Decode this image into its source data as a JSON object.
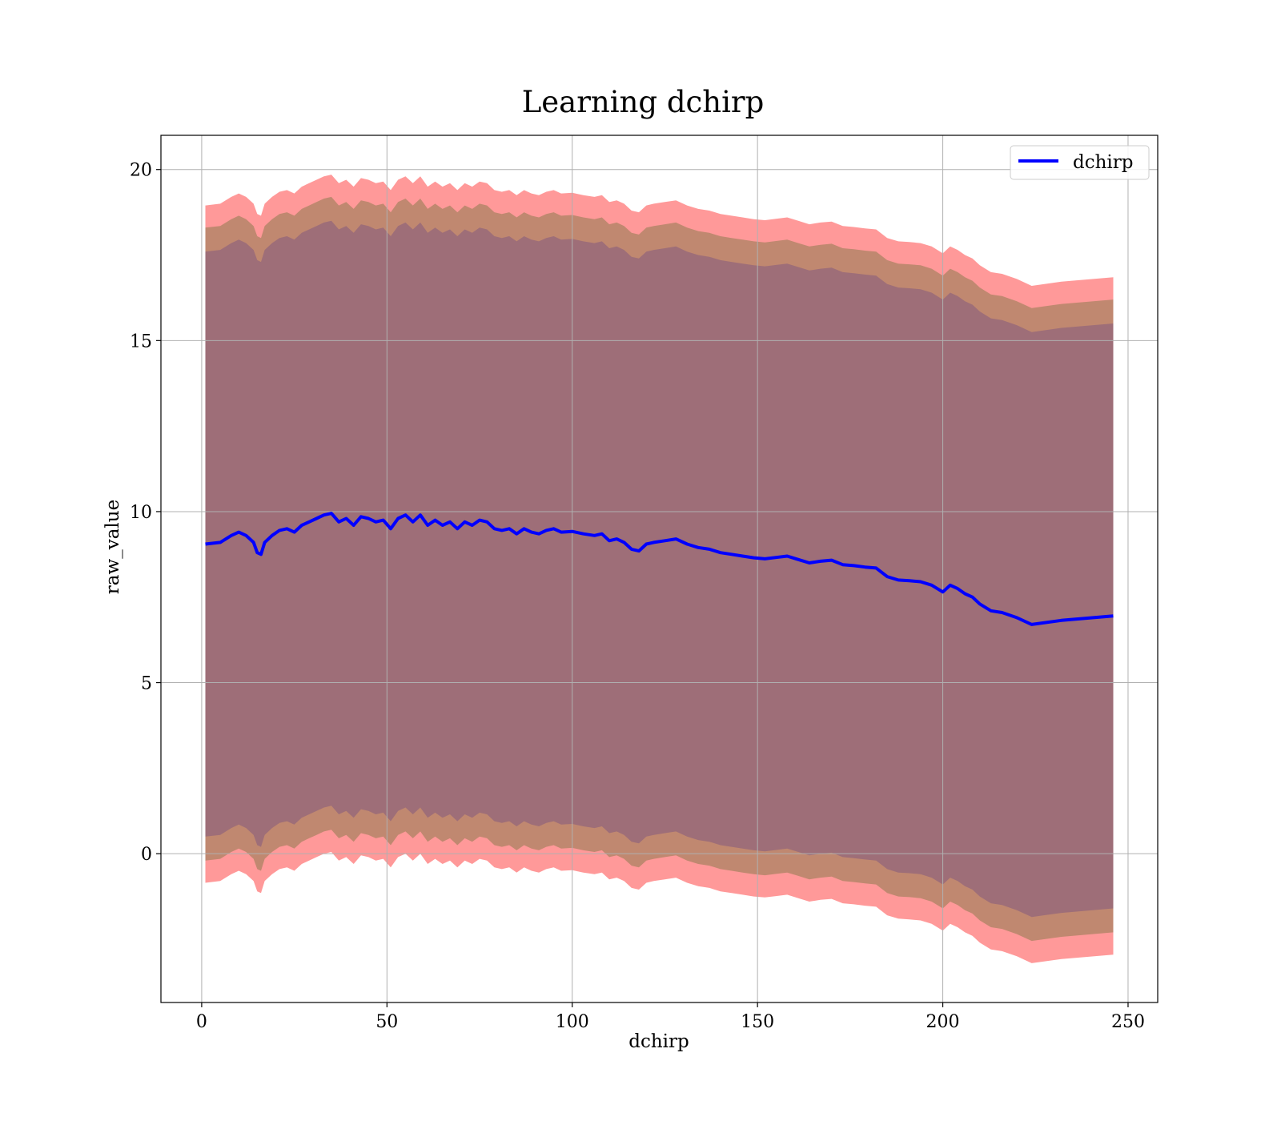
{
  "chart_data": {
    "type": "line",
    "title": "Learning dchirp",
    "xlabel": "dchirp",
    "ylabel": "raw_value",
    "xlim": [
      -11,
      258
    ],
    "ylim": [
      -4.35,
      21.0
    ],
    "xticks": [
      0,
      50,
      100,
      150,
      200,
      250
    ],
    "yticks": [
      0,
      5,
      10,
      15,
      20
    ],
    "grid": true,
    "legend_position": "top-right",
    "colors": {
      "line": "#0000ff",
      "band_outer": "#ff9999",
      "band_middle": "#c08870",
      "band_inner": "#9e6e78",
      "grid": "#b0b0b0"
    },
    "series": [
      {
        "name": "dchirp",
        "x": [
          1,
          5,
          8,
          10,
          12,
          14,
          15,
          16,
          17,
          19,
          21,
          23,
          25,
          27,
          29,
          31,
          33,
          35,
          37,
          39,
          41,
          43,
          45,
          47,
          49,
          51,
          53,
          55,
          57,
          59,
          61,
          63,
          65,
          67,
          69,
          71,
          73,
          75,
          77,
          79,
          81,
          83,
          85,
          87,
          89,
          91,
          93,
          95,
          97,
          100,
          103,
          106,
          108,
          110,
          112,
          114,
          116,
          118,
          120,
          122,
          125,
          128,
          131,
          134,
          137,
          140,
          143,
          146,
          149,
          152,
          155,
          158,
          161,
          164,
          167,
          170,
          173,
          176,
          179,
          182,
          185,
          188,
          191,
          194,
          197,
          200,
          202,
          204,
          206,
          208,
          210,
          213,
          216,
          220,
          224,
          232,
          246
        ],
        "y": [
          9.05,
          9.1,
          9.3,
          9.4,
          9.3,
          9.1,
          8.8,
          8.75,
          9.1,
          9.3,
          9.45,
          9.5,
          9.4,
          9.6,
          9.7,
          9.8,
          9.9,
          9.95,
          9.7,
          9.8,
          9.6,
          9.85,
          9.8,
          9.7,
          9.75,
          9.5,
          9.8,
          9.9,
          9.7,
          9.9,
          9.6,
          9.75,
          9.6,
          9.7,
          9.5,
          9.7,
          9.6,
          9.75,
          9.7,
          9.5,
          9.45,
          9.5,
          9.35,
          9.5,
          9.4,
          9.35,
          9.45,
          9.5,
          9.4,
          9.42,
          9.35,
          9.3,
          9.35,
          9.15,
          9.2,
          9.1,
          8.9,
          8.85,
          9.05,
          9.1,
          9.15,
          9.2,
          9.05,
          8.95,
          8.9,
          8.8,
          8.75,
          8.7,
          8.65,
          8.62,
          8.66,
          8.7,
          8.6,
          8.5,
          8.55,
          8.58,
          8.45,
          8.42,
          8.38,
          8.35,
          8.1,
          8.0,
          7.98,
          7.95,
          7.85,
          7.65,
          7.85,
          7.75,
          7.6,
          7.5,
          7.3,
          7.1,
          7.05,
          6.9,
          6.7,
          6.82,
          6.95
        ]
      }
    ],
    "bands": [
      {
        "half_width": 9.9
      },
      {
        "half_width": 9.25
      },
      {
        "half_width": 8.55
      }
    ]
  }
}
